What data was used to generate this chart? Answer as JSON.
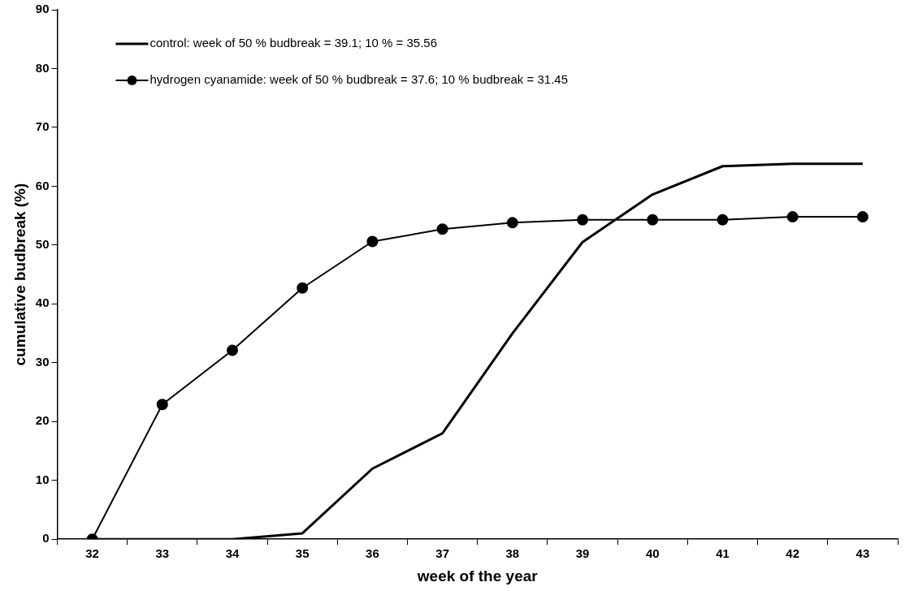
{
  "chart_data": {
    "type": "line",
    "xlabel": "week of the year",
    "ylabel": "cumulative budbreak (%)",
    "categories": [
      "32",
      "33",
      "34",
      "35",
      "36",
      "37",
      "38",
      "39",
      "40",
      "41",
      "42",
      "43"
    ],
    "ylim": [
      0,
      90
    ],
    "yticks": [
      0,
      10,
      20,
      30,
      40,
      50,
      60,
      70,
      80,
      90
    ],
    "grid": false,
    "legend": "top left",
    "series": [
      {
        "name": "control: week of 50 % budbreak = 39.1; 10 % = 35.56",
        "color": "#000000",
        "marker": "none",
        "values": [
          0,
          0,
          0,
          1,
          12,
          18,
          35,
          50.5,
          58.6,
          63.4,
          63.8,
          63.8
        ]
      },
      {
        "name": "hydrogen cyanamide: week of 50 % budbreak = 37.6; 10 % budbreak = 31.45",
        "color": "#000000",
        "marker": "circle",
        "values": [
          0,
          22.9,
          32.1,
          42.7,
          50.6,
          52.7,
          53.8,
          54.3,
          54.3,
          54.3,
          54.8,
          54.8
        ]
      }
    ]
  }
}
